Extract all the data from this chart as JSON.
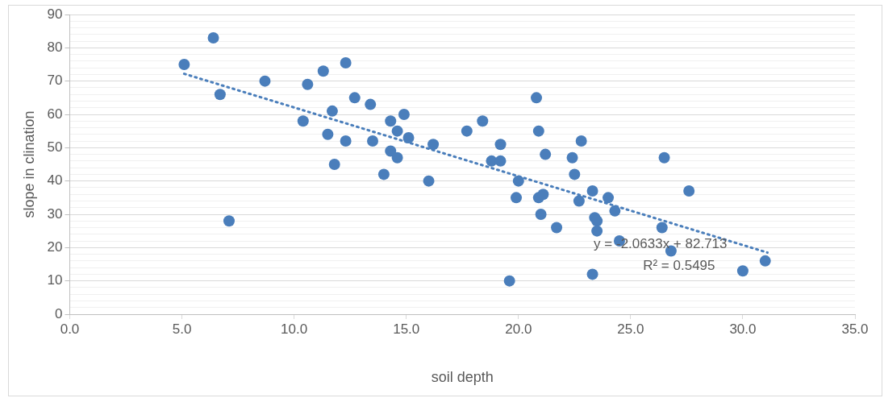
{
  "chart_data": {
    "type": "scatter",
    "xlabel": "soil depth",
    "ylabel": "slope in clination",
    "xlim": [
      0,
      35
    ],
    "xticks": [
      {
        "value": 0,
        "label": "0.0"
      },
      {
        "value": 5,
        "label": "5.0"
      },
      {
        "value": 10,
        "label": "10.0"
      },
      {
        "value": 15,
        "label": "15.0"
      },
      {
        "value": 20,
        "label": "20.0"
      },
      {
        "value": 25,
        "label": "25.0"
      },
      {
        "value": 30,
        "label": "30.0"
      },
      {
        "value": 35,
        "label": "35.0"
      }
    ],
    "ylim": [
      0,
      90
    ],
    "yticks": [
      0,
      {
        "value": 2,
        "label": null
      },
      {
        "value": 4,
        "label": null
      },
      {
        "value": 6,
        "label": null
      },
      {
        "value": 8,
        "label": null
      },
      10,
      {
        "value": 12,
        "label": null
      },
      {
        "value": 14,
        "label": null
      },
      {
        "value": 16,
        "label": null
      },
      {
        "value": 18,
        "label": null
      },
      20,
      {
        "value": 22,
        "label": null
      },
      {
        "value": 24,
        "label": null
      },
      {
        "value": 26,
        "label": null
      },
      {
        "value": 28,
        "label": null
      },
      30,
      {
        "value": 32,
        "label": null
      },
      {
        "value": 34,
        "label": null
      },
      {
        "value": 36,
        "label": null
      },
      {
        "value": 38,
        "label": null
      },
      40,
      {
        "value": 42,
        "label": null
      },
      {
        "value": 44,
        "label": null
      },
      {
        "value": 46,
        "label": null
      },
      {
        "value": 48,
        "label": null
      },
      50,
      {
        "value": 52,
        "label": null
      },
      {
        "value": 54,
        "label": null
      },
      {
        "value": 56,
        "label": null
      },
      {
        "value": 58,
        "label": null
      },
      60,
      {
        "value": 62,
        "label": null
      },
      {
        "value": 64,
        "label": null
      },
      {
        "value": 66,
        "label": null
      },
      {
        "value": 68,
        "label": null
      },
      70,
      {
        "value": 72,
        "label": null
      },
      {
        "value": 74,
        "label": null
      },
      {
        "value": 76,
        "label": null
      },
      {
        "value": 78,
        "label": null
      },
      80,
      {
        "value": 82,
        "label": null
      },
      {
        "value": 84,
        "label": null
      },
      {
        "value": 86,
        "label": null
      },
      {
        "value": 88,
        "label": null
      },
      90
    ],
    "grid": "y",
    "legend": false,
    "marker": "circle",
    "annotations": [
      "y = -2.0633x + 82.713",
      "R² = 0.5495"
    ],
    "series": [
      {
        "color": "#4a7ebb",
        "x": [
          5.1,
          6.4,
          6.7,
          7.1,
          8.7,
          10.4,
          10.6,
          11.3,
          11.5,
          11.7,
          11.8,
          12.3,
          12.3,
          12.7,
          13.4,
          13.5,
          14.0,
          14.3,
          14.3,
          14.6,
          14.6,
          14.9,
          15.1,
          16.0,
          16.2,
          17.7,
          18.4,
          18.8,
          19.2,
          19.2,
          19.6,
          19.9,
          20.0,
          20.8,
          20.9,
          20.9,
          21.0,
          21.1,
          21.2,
          21.7,
          22.4,
          22.5,
          22.7,
          22.8,
          23.3,
          23.3,
          23.4,
          23.5,
          23.5,
          24.0,
          24.3,
          24.5,
          26.4,
          26.5,
          26.8,
          27.6,
          30.0,
          31.0
        ],
        "values": [
          75,
          83,
          66,
          28,
          70,
          58,
          69,
          73,
          54,
          61,
          45,
          75.5,
          52,
          65,
          63,
          52,
          42,
          58,
          49,
          55,
          47,
          60,
          53,
          40,
          51,
          55,
          58,
          46,
          46,
          51,
          10,
          35,
          40,
          65,
          55,
          35,
          30,
          36,
          48,
          26,
          47,
          42,
          34,
          52,
          37,
          12,
          29,
          28,
          25,
          35,
          31,
          22,
          26,
          47,
          19,
          37,
          13,
          16
        ]
      },
      {
        "type": "line",
        "color": "#4a7ebb",
        "line_style": "dotted",
        "marker": "none",
        "x": [
          5.1,
          31.1
        ],
        "values": [
          72.2,
          18.5
        ]
      }
    ]
  }
}
